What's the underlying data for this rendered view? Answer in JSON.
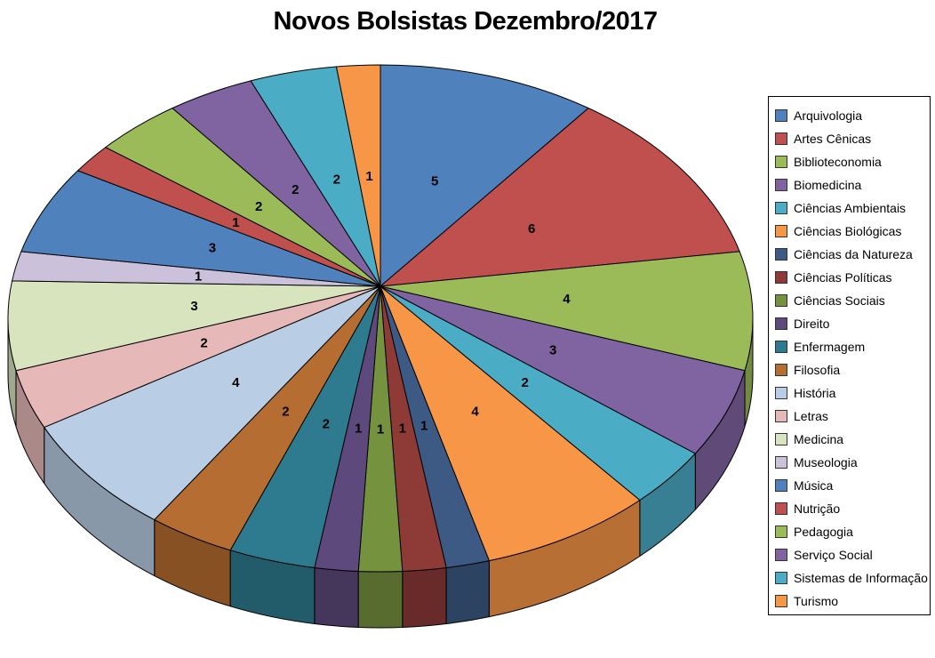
{
  "chart_data": {
    "type": "pie",
    "title": "Novos Bolsistas Dezembro/2017",
    "effect_3d": true,
    "start_angle_deg": 0,
    "direction": "clockwise",
    "labels_shown": "values",
    "legend_position": "right",
    "categories": [
      "Arquivologia",
      "Artes Cênicas",
      "Biblioteconomia",
      "Biomedicina",
      "Ciências Ambientais",
      "Ciências Biológicas",
      "Ciências da Natureza",
      "Ciências Políticas",
      "Ciências Sociais",
      "Direito",
      "Enfermagem",
      "Filosofia",
      "História",
      "Letras",
      "Medicina",
      "Museologia",
      "Música",
      "Nutrição",
      "Pedagogia",
      "Serviço Social",
      "Sistemas de Informação",
      "Turismo"
    ],
    "values": [
      5,
      6,
      4,
      3,
      2,
      4,
      1,
      1,
      1,
      1,
      2,
      2,
      4,
      2,
      3,
      1,
      3,
      1,
      2,
      2,
      2,
      1
    ],
    "colors": [
      "#4F81BD",
      "#C0504D",
      "#9BBB59",
      "#8064A2",
      "#4BACC6",
      "#F79646",
      "#3C5A84",
      "#8E3A37",
      "#75923E",
      "#5D497C",
      "#2E7B8F",
      "#B66D31",
      "#B9CDE5",
      "#E6B9B8",
      "#D7E4BD",
      "#CCC1DA",
      "#4F81BD",
      "#C0504D",
      "#9BBB59",
      "#8064A2",
      "#4BACC6",
      "#F79646"
    ],
    "label_color": "#000000",
    "title_color": "#000000"
  }
}
